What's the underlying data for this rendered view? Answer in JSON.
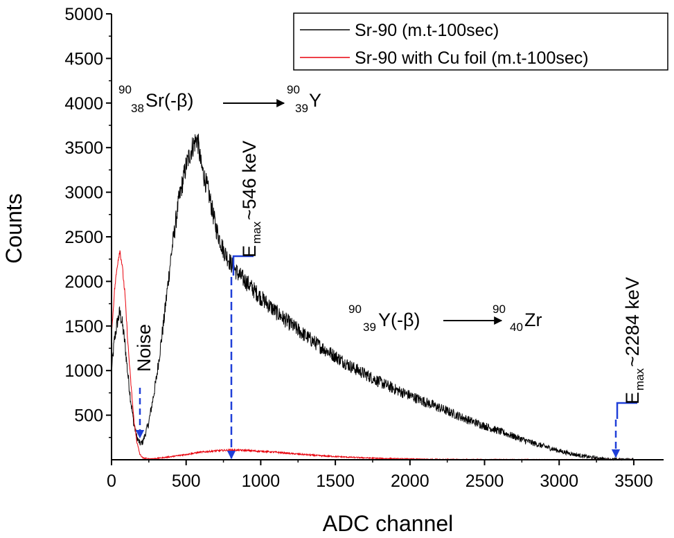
{
  "chart_data": {
    "type": "line",
    "title": "",
    "xlabel": "ADC channel",
    "ylabel": "Counts",
    "xlim": [
      0,
      3700
    ],
    "ylim": [
      0,
      5000
    ],
    "x_ticks": [
      0,
      500,
      1000,
      1500,
      2000,
      2500,
      3000,
      3500
    ],
    "y_ticks": [
      500,
      1000,
      1500,
      2000,
      2500,
      3000,
      3500,
      4000,
      4500,
      5000
    ],
    "x_tick_labels": [
      "0",
      "500",
      "1000",
      "1500",
      "2000",
      "2500",
      "3000",
      "3500"
    ],
    "y_tick_labels": [
      "500",
      "1000",
      "1500",
      "2000",
      "2500",
      "3000",
      "3500",
      "4000",
      "4500",
      "5000"
    ],
    "grid": false,
    "legend_position": "top-right",
    "series": [
      {
        "name": "Sr-90 (m.t-100sec)",
        "color": "#000000",
        "x": [
          0,
          20,
          40,
          55,
          70,
          90,
          110,
          130,
          150,
          170,
          190,
          210,
          250,
          300,
          350,
          400,
          450,
          500,
          540,
          570,
          580,
          600,
          650,
          700,
          750,
          800,
          850,
          900,
          1000,
          1100,
          1200,
          1300,
          1400,
          1500,
          1600,
          1700,
          1800,
          1900,
          2000,
          2100,
          2200,
          2300,
          2400,
          2500,
          2600,
          2700,
          2800,
          2900,
          3000,
          3100,
          3200,
          3300,
          3350,
          3400,
          3450,
          3500
        ],
        "values": [
          1000,
          1350,
          1550,
          1650,
          1550,
          1300,
          950,
          650,
          400,
          250,
          180,
          200,
          420,
          900,
          1550,
          2300,
          2900,
          3300,
          3500,
          3600,
          3550,
          3300,
          3000,
          2600,
          2350,
          2200,
          2080,
          2000,
          1820,
          1660,
          1520,
          1390,
          1270,
          1160,
          1050,
          960,
          870,
          790,
          720,
          650,
          580,
          510,
          440,
          380,
          320,
          260,
          200,
          150,
          100,
          60,
          30,
          10,
          5,
          3,
          2,
          0
        ],
        "noise_amplitude_counts": 70
      },
      {
        "name": "Sr-90 with Cu foil (m.t-100sec)",
        "color": "#e8000b",
        "x": [
          0,
          20,
          40,
          55,
          70,
          90,
          110,
          130,
          150,
          170,
          190,
          210,
          250,
          300,
          400,
          500,
          600,
          700,
          800,
          900,
          1000,
          1100,
          1200,
          1400,
          1600,
          1800,
          2000,
          2200,
          2400,
          3000,
          3500
        ],
        "values": [
          1400,
          1900,
          2200,
          2350,
          2200,
          1850,
          1300,
          850,
          450,
          200,
          60,
          20,
          10,
          15,
          35,
          60,
          85,
          100,
          110,
          105,
          95,
          85,
          70,
          45,
          28,
          15,
          8,
          4,
          2,
          0,
          0
        ],
        "noise_amplitude_counts": 25
      }
    ],
    "annotations": [
      {
        "id": "sr-decay",
        "parts": [
          {
            "sup": "90"
          },
          {
            "sub": "38"
          },
          {
            "text": "Sr(-β)"
          },
          {
            "arrow": true
          },
          {
            "sup": "90"
          },
          {
            "sub": "39"
          },
          {
            "text": "Y"
          }
        ]
      },
      {
        "id": "y-decay",
        "parts": [
          {
            "sup": "90"
          },
          {
            "sub": "39"
          },
          {
            "text": "Y(-β)"
          },
          {
            "arrow": true
          },
          {
            "sup": "90"
          },
          {
            "sub": "40"
          },
          {
            "text": "Zr"
          }
        ]
      },
      {
        "id": "noise",
        "label": "Noise",
        "at_x": 180
      },
      {
        "id": "emax-sr",
        "main": "E",
        "sub": "max",
        "value": "~546 keV",
        "at_x": 800
      },
      {
        "id": "emax-y",
        "main": "E",
        "sub": "max",
        "value": "~2284 keV",
        "at_x": 3400
      }
    ]
  }
}
